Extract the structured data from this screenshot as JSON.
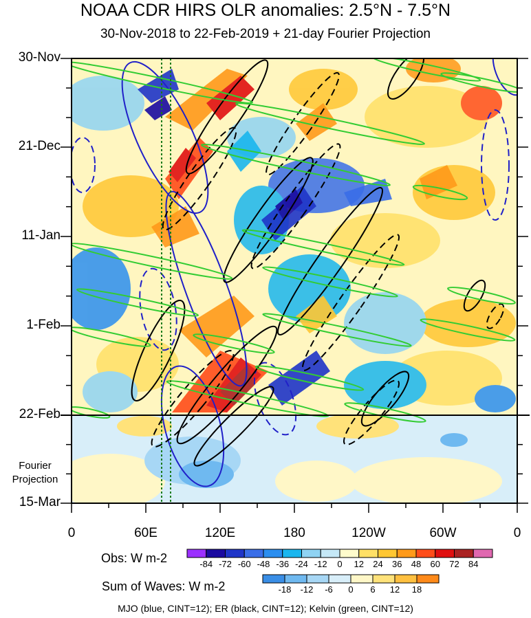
{
  "chart_data": {
    "type": "heatmap",
    "title": "NOAA CDR HIRS OLR anomalies: 2.5°N - 7.5°N",
    "subtitle": "30-Nov-2018 to 22-Feb-2019 + 21-day Fourier Projection",
    "y_tick_labels": [
      "30-Nov",
      "21-Dec",
      "11-Jan",
      "1-Feb",
      "22-Feb",
      "15-Mar"
    ],
    "x_tick_labels": [
      "0",
      "60E",
      "120E",
      "180",
      "120W",
      "60W",
      "0"
    ],
    "x_range": [
      0,
      360
    ],
    "projection_label": "Fourier Projection",
    "obs_colorbar": {
      "label": "Obs: W m-2",
      "levels": [
        "-84",
        "-72",
        "-60",
        "-48",
        "-36",
        "-24",
        "-12",
        "0",
        "12",
        "24",
        "36",
        "48",
        "60",
        "72",
        "84"
      ],
      "colors": [
        "#9b30ff",
        "#1a0aa0",
        "#1f35c8",
        "#3a6ee8",
        "#2b8ef0",
        "#1ab6ee",
        "#8fd3f3",
        "#c5e8f7",
        "#fffccc",
        "#ffe066",
        "#ffc733",
        "#ff9a1a",
        "#ff4d1a",
        "#e01010",
        "#aa2222",
        "#e068b0"
      ]
    },
    "waves_colorbar": {
      "label": "Sum of Waves: W m-2",
      "levels": [
        "-18",
        "-12",
        "-6",
        "0",
        "6",
        "12",
        "18"
      ],
      "colors": [
        "#3a8ee6",
        "#6fb9f0",
        "#a7d7f5",
        "#d8eef9",
        "#fff7c7",
        "#ffe27a",
        "#ffc040",
        "#ff8a1a"
      ]
    },
    "footer": "MJO (blue, CINT=12); ER (black, CINT=12); Kelvin (green, CINT=12)"
  }
}
